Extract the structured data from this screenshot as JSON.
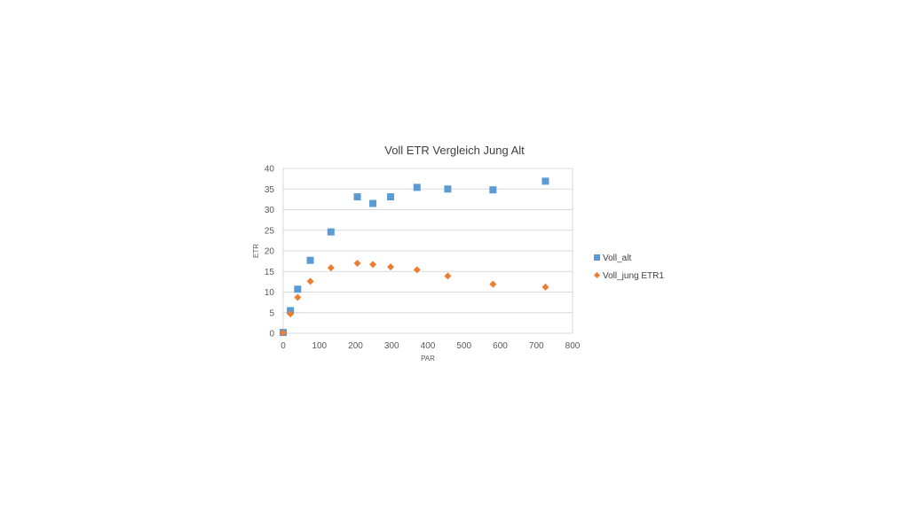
{
  "chart_data": {
    "type": "scatter",
    "title": "Voll ETR Vergleich Jung Alt",
    "xlabel": "PAR",
    "ylabel": "ETR",
    "xlim": [
      0,
      800
    ],
    "ylim": [
      0,
      40
    ],
    "xticks": [
      0,
      100,
      200,
      300,
      400,
      500,
      600,
      700,
      800
    ],
    "yticks": [
      0,
      5,
      10,
      15,
      20,
      25,
      30,
      35,
      40
    ],
    "grid": "horizontal",
    "legend": "right",
    "series": [
      {
        "name": "Voll_alt",
        "marker": "square",
        "color": "#5B9BD5",
        "points": [
          [
            0,
            0.2
          ],
          [
            20,
            5.5
          ],
          [
            40,
            10.7
          ],
          [
            75,
            17.7
          ],
          [
            132,
            24.6
          ],
          [
            205,
            33.1
          ],
          [
            248,
            31.5
          ],
          [
            297,
            33.1
          ],
          [
            370,
            35.4
          ],
          [
            455,
            35.0
          ],
          [
            580,
            34.8
          ],
          [
            725,
            36.9
          ]
        ]
      },
      {
        "name": "Voll_jung ETR1",
        "marker": "diamond",
        "color": "#ED7D31",
        "points": [
          [
            0,
            0.1
          ],
          [
            20,
            4.7
          ],
          [
            40,
            8.7
          ],
          [
            75,
            12.6
          ],
          [
            132,
            15.9
          ],
          [
            205,
            17.0
          ],
          [
            248,
            16.7
          ],
          [
            297,
            16.1
          ],
          [
            370,
            15.4
          ],
          [
            455,
            13.9
          ],
          [
            580,
            11.9
          ],
          [
            725,
            11.2
          ]
        ]
      }
    ]
  }
}
